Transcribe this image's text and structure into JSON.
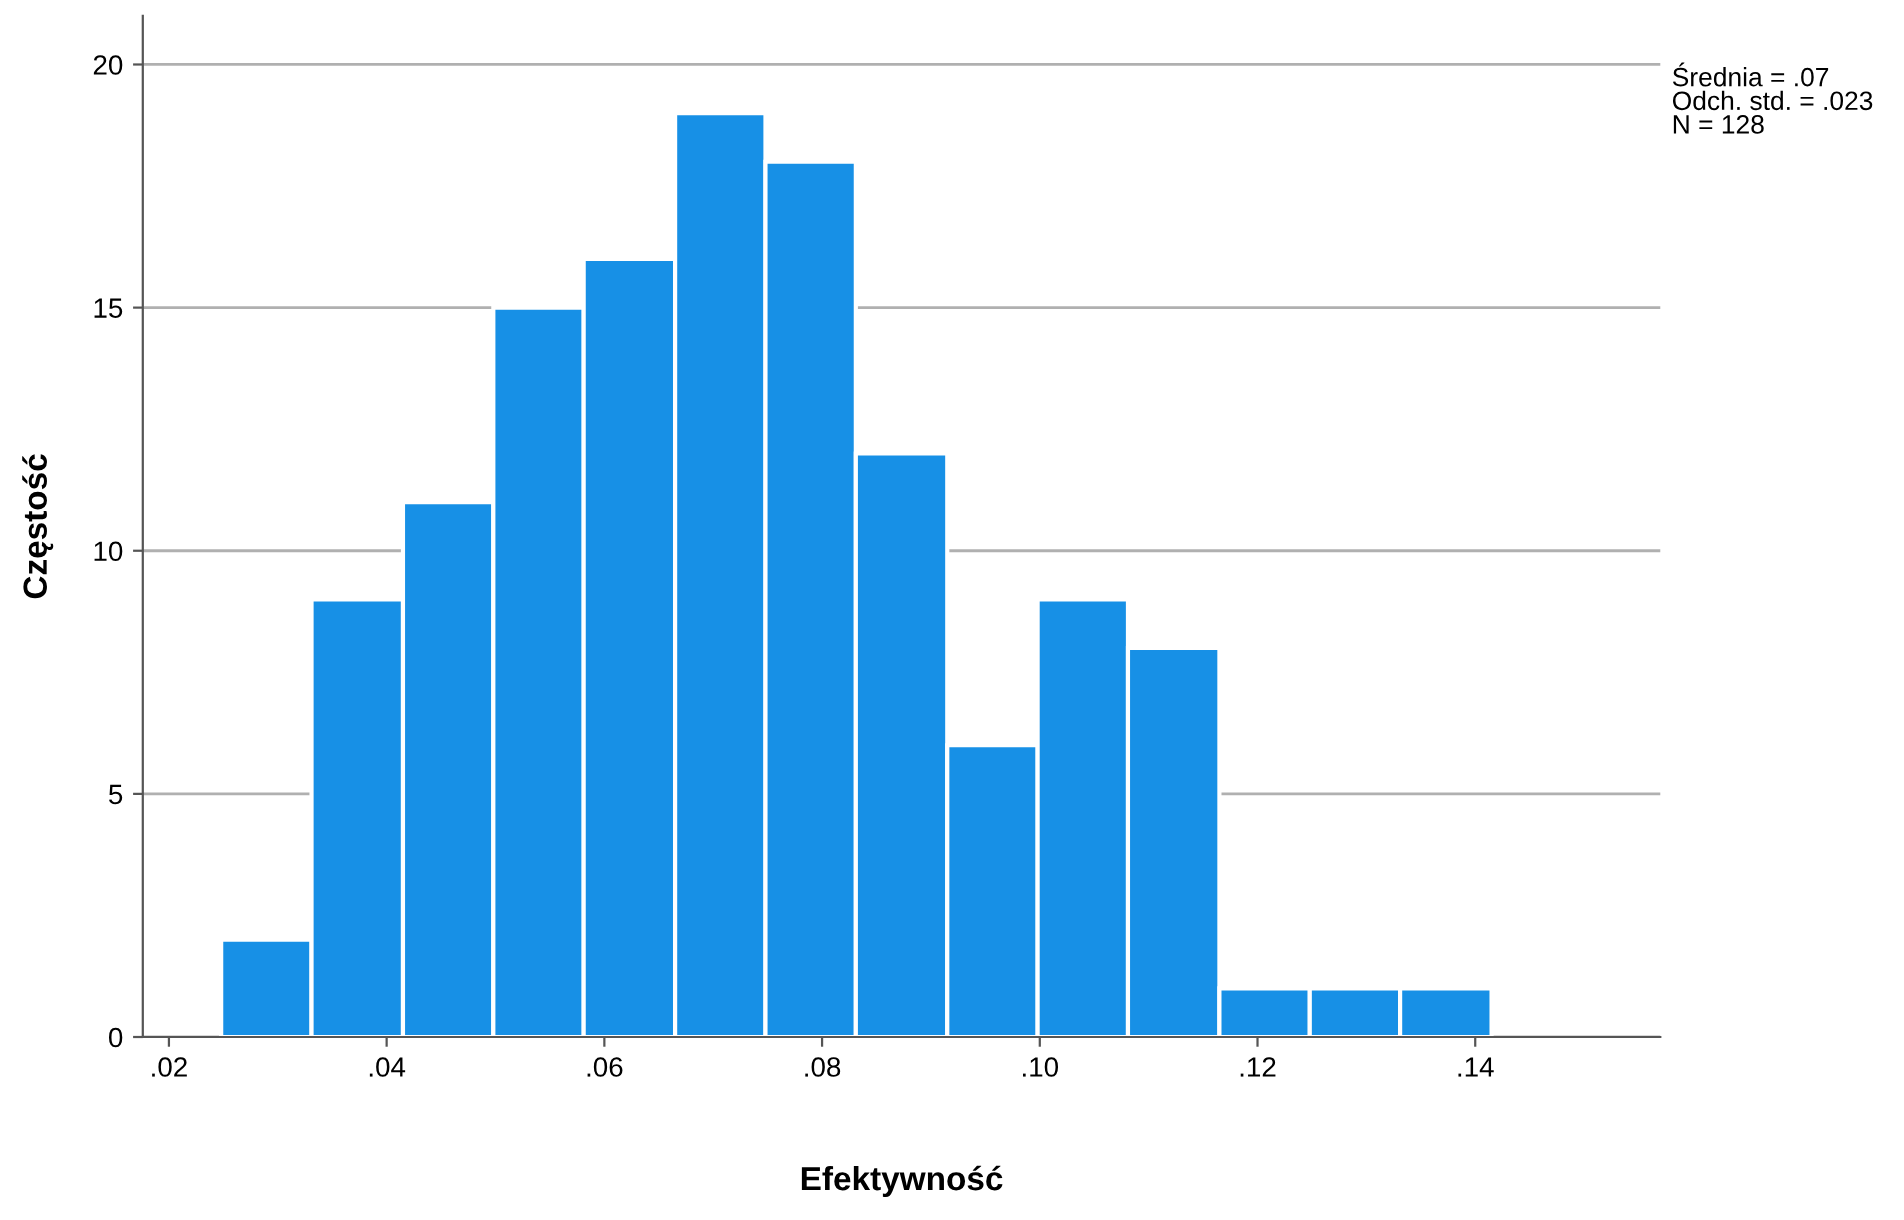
{
  "chart_data": {
    "type": "histogram",
    "xlabel": "Efektywność",
    "ylabel": "Częstość",
    "bins": [
      0.0248,
      0.0331,
      0.0415,
      0.0498,
      0.0581,
      0.0665,
      0.0748,
      0.0831,
      0.0915,
      0.0998,
      0.1081,
      0.1165,
      0.1248,
      0.1331,
      0.1415
    ],
    "values": [
      2,
      9,
      11,
      15,
      16,
      19,
      18,
      12,
      6,
      9,
      8,
      1,
      1,
      1
    ],
    "color": "#1790e6",
    "xlim": [
      0.0176,
      0.157
    ],
    "xticks": [
      {
        "value": 0.02,
        "label": ".02"
      },
      {
        "value": 0.04,
        "label": ".04"
      },
      {
        "value": 0.06,
        "label": ".06"
      },
      {
        "value": 0.08,
        "label": ".08"
      },
      {
        "value": 0.1,
        "label": ".10"
      },
      {
        "value": 0.12,
        "label": ".12"
      },
      {
        "value": 0.14,
        "label": ".14"
      }
    ],
    "ylim": [
      0,
      21
    ],
    "yticks": [
      0,
      5,
      10,
      15,
      20
    ],
    "grid": "y",
    "legend": false,
    "annotations": [
      "Średnia = .07\nOdch. std. = .023\nN = 128"
    ]
  }
}
